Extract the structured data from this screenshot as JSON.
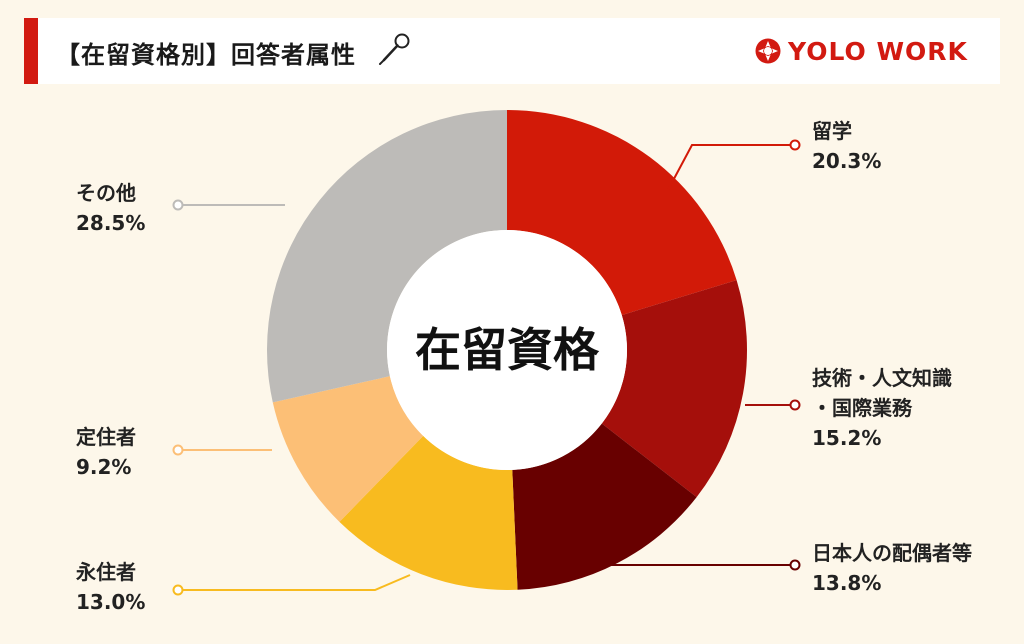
{
  "header": {
    "title": "【在留資格別】回答者属性",
    "logo_text": "YOLO WORK"
  },
  "colors": {
    "accent": "#d21a11",
    "background": "#fdf7ea"
  },
  "chart_data": {
    "type": "pie",
    "center_label": "在留資格",
    "slices": [
      {
        "label": "留学",
        "value": 20.3,
        "value_text": "20.3%",
        "color": "#d21a08"
      },
      {
        "label": "技術・人文知識・国際業務",
        "label_line1": "技術・人文知識",
        "label_line2": "・国際業務",
        "value": 15.2,
        "value_text": "15.2%",
        "color": "#a50f0b"
      },
      {
        "label": "日本人の配偶者等",
        "value": 13.8,
        "value_text": "13.8%",
        "color": "#680000"
      },
      {
        "label": "永住者",
        "value": 13.0,
        "value_text": "13.0%",
        "color": "#f8bb1f"
      },
      {
        "label": "定住者",
        "value": 9.2,
        "value_text": "9.2%",
        "color": "#fcbf76"
      },
      {
        "label": "その他",
        "value": 28.5,
        "value_text": "28.5%",
        "color": "#bdbbb8"
      }
    ]
  }
}
